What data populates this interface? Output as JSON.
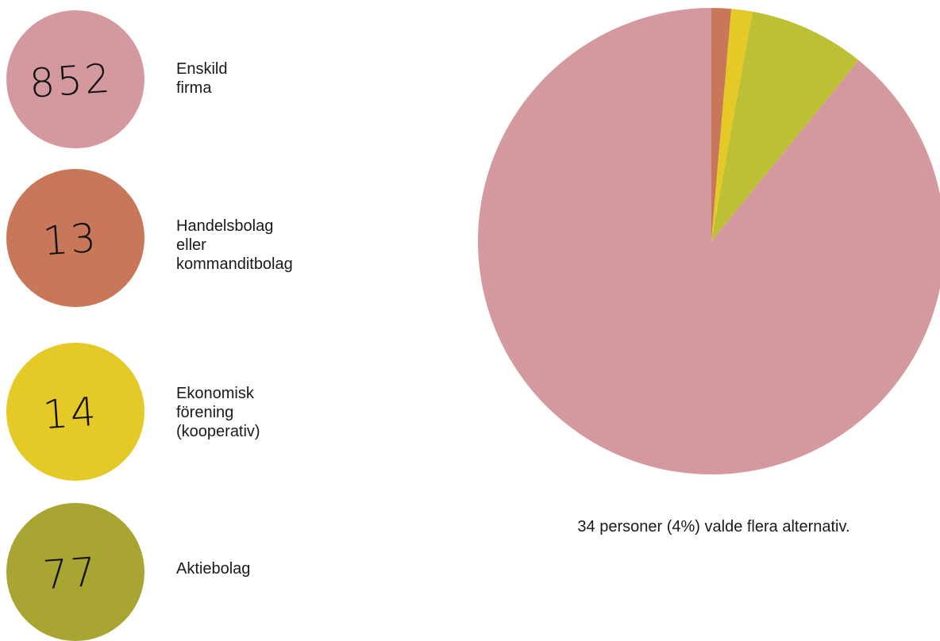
{
  "chart_data": {
    "type": "pie",
    "categories": [
      "Enskild firma",
      "Handelsbolag\neller kommanditbolag",
      "Ekonomisk förening\n(kooperativ)",
      "Aktiebolag"
    ],
    "values": [
      852,
      13,
      14,
      77
    ],
    "colors": [
      "#d4999f",
      "#c87759",
      "#e5c926",
      "#bdbf35"
    ],
    "start_angle": "12 o'clock",
    "direction": "clockwise",
    "slice_order": [
      "Handelsbolag\neller kommanditbolag",
      "Ekonomisk förening\n(kooperativ)",
      "Aktiebolag",
      "Enskild firma"
    ]
  },
  "legend": {
    "items": [
      {
        "count": "852",
        "label": "Enskild firma",
        "color": "#d4999f"
      },
      {
        "count": "13",
        "label": "Handelsbolag\neller kommanditbolag",
        "color": "#c87759"
      },
      {
        "count": "14",
        "label": "Ekonomisk förening\n(kooperativ)",
        "color": "#e5c926"
      },
      {
        "count": "77",
        "label": "Aktiebolag",
        "color": "#a8a532"
      }
    ]
  },
  "footnote": "34 personer (4%) valde flera alternativ."
}
